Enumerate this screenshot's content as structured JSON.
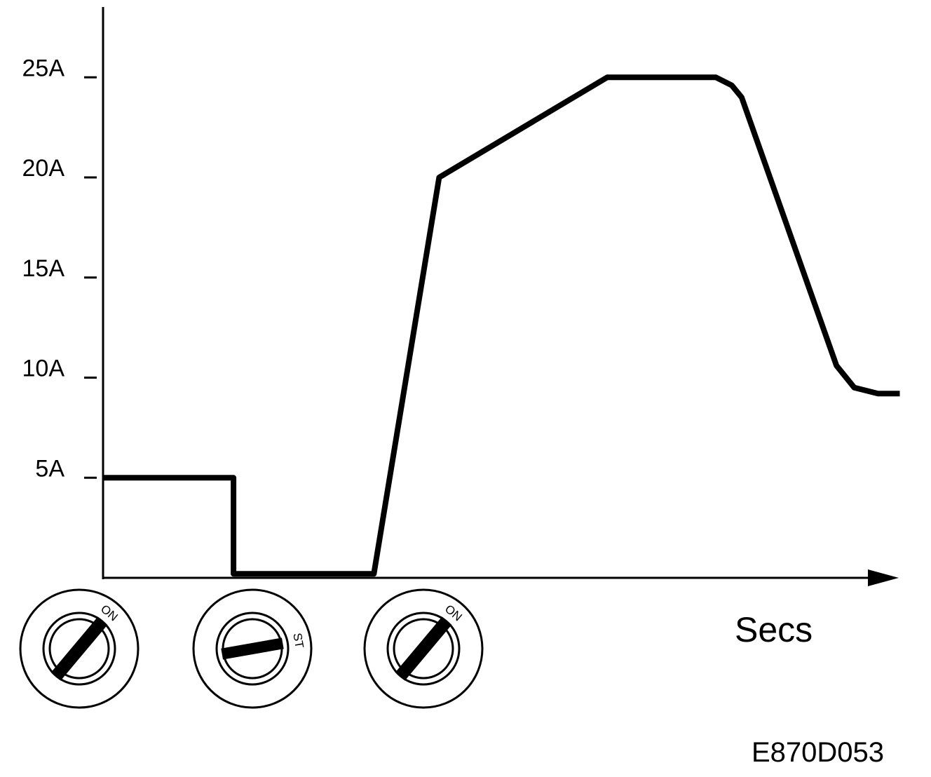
{
  "chart_data": {
    "type": "line",
    "title": "",
    "xlabel": "Secs",
    "ylabel": "",
    "y_ticks": [
      {
        "value": 25,
        "label": "25A"
      },
      {
        "value": 20,
        "label": "20A"
      },
      {
        "value": 15,
        "label": "15A"
      },
      {
        "value": 10,
        "label": "10A"
      },
      {
        "value": 5,
        "label": "5A"
      }
    ],
    "ylim": [
      0,
      28
    ],
    "grid": false,
    "series": [
      {
        "x": [
          0,
          6.6,
          6.6,
          13.7,
          17.0,
          25.5,
          31.0,
          31.8,
          32.3,
          37.1,
          38.0,
          39.2,
          40.3
        ],
        "y": [
          5,
          5,
          0.2,
          0.2,
          20,
          25,
          25,
          24.6,
          24,
          10.6,
          9.5,
          9.2,
          9.2
        ]
      }
    ],
    "xlim": [
      0,
      40.5
    ]
  },
  "ignition_keys": [
    {
      "label": "ON"
    },
    {
      "label": "ST"
    },
    {
      "label": "ON"
    }
  ],
  "figure_id": "E870D053"
}
